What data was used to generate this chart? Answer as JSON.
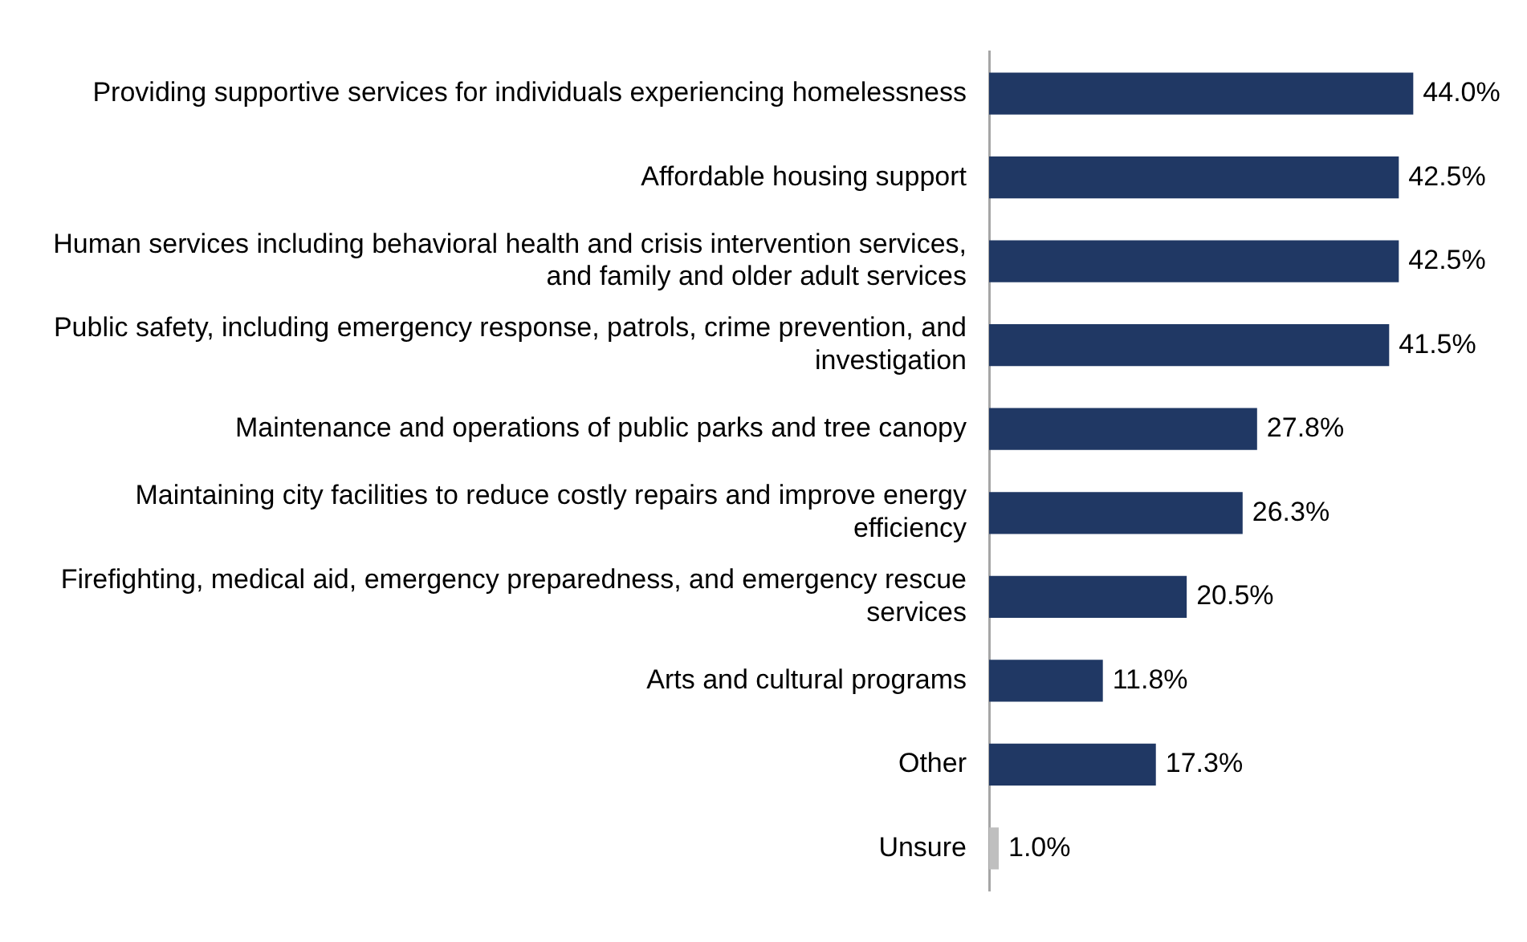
{
  "chart_data": {
    "type": "bar",
    "orientation": "horizontal",
    "categories": [
      "Providing supportive services for individuals experiencing homelessness",
      "Affordable housing support",
      "Human services including behavioral health and crisis intervention services, and family and older adult services",
      "Public safety, including emergency response, patrols, crime prevention, and investigation",
      "Maintenance and operations of public parks and tree canopy",
      "Maintaining city facilities to reduce costly repairs and improve energy efficiency",
      "Firefighting, medical aid, emergency preparedness, and emergency rescue services",
      "Arts and cultural programs",
      "Other",
      "Unsure"
    ],
    "values": [
      44.0,
      42.5,
      42.5,
      41.5,
      27.8,
      26.3,
      20.5,
      11.8,
      17.3,
      1.0
    ],
    "value_labels": [
      "44.0%",
      "42.5%",
      "42.5%",
      "41.5%",
      "27.8%",
      "26.3%",
      "20.5%",
      "11.8%",
      "17.3%",
      "1.0%"
    ],
    "colors": [
      "#203864",
      "#203864",
      "#203864",
      "#203864",
      "#203864",
      "#203864",
      "#203864",
      "#203864",
      "#203864",
      "#bfbfbf"
    ],
    "legend": false
  }
}
